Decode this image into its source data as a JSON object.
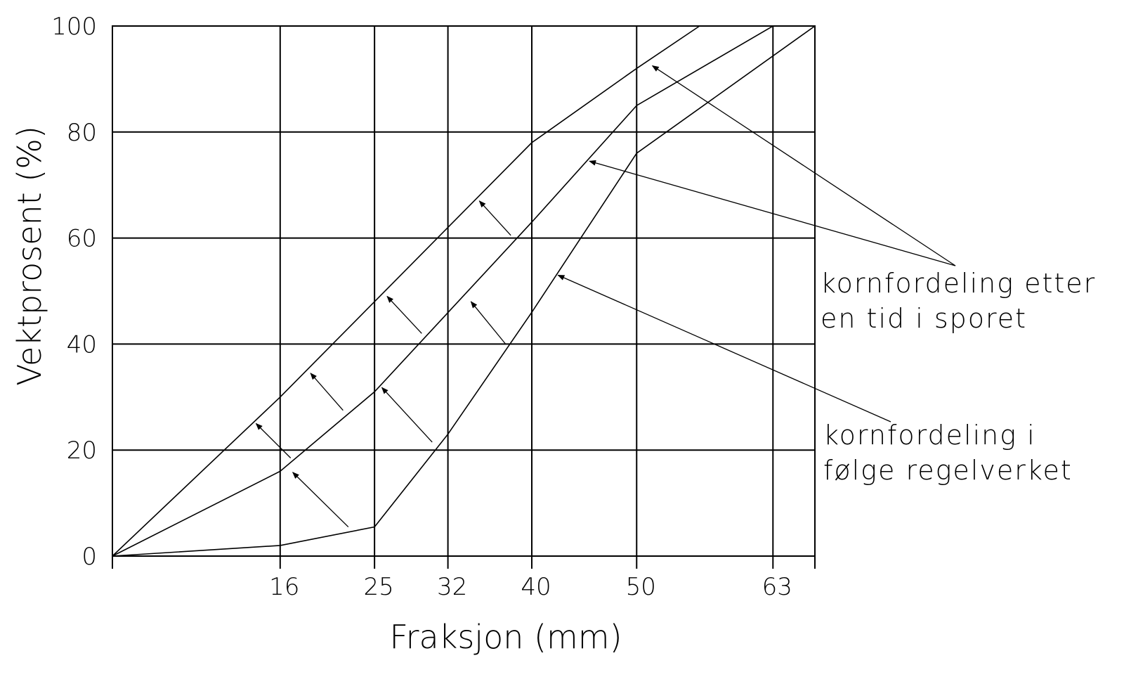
{
  "chart_data": {
    "type": "line",
    "xlabel": "Fraksjon (mm)",
    "ylabel": "Vektprosent (%)",
    "xticks": [
      16,
      25,
      32,
      40,
      50,
      63
    ],
    "yticks": [
      0,
      20,
      40,
      60,
      80,
      100
    ],
    "xlim": [
      0,
      67
    ],
    "ylim": [
      0,
      100
    ],
    "grid": true,
    "series": [
      {
        "role": "upper",
        "x": [
          0,
          16,
          25,
          40,
          50,
          56,
          67
        ],
        "y": [
          0,
          30,
          48,
          78,
          92,
          100,
          100
        ]
      },
      {
        "role": "middle",
        "x": [
          0,
          16,
          25,
          40,
          50,
          63,
          67
        ],
        "y": [
          0,
          16,
          31,
          63,
          85,
          100,
          100
        ]
      },
      {
        "role": "lower",
        "x": [
          0,
          16,
          25,
          32,
          40,
          50,
          67
        ],
        "y": [
          0,
          2,
          5.5,
          23,
          46,
          76,
          100
        ]
      }
    ],
    "shift_arrows": [
      {
        "from": [
          22.5,
          5.5
        ],
        "to": [
          17.2,
          15.8
        ]
      },
      {
        "from": [
          17.0,
          18.5
        ],
        "to": [
          13.7,
          25.0
        ]
      },
      {
        "from": [
          22.0,
          27.5
        ],
        "to": [
          18.9,
          34.5
        ]
      },
      {
        "from": [
          30.5,
          21.5
        ],
        "to": [
          25.7,
          31.8
        ]
      },
      {
        "from": [
          29.5,
          42.0
        ],
        "to": [
          26.2,
          49.0
        ]
      },
      {
        "from": [
          37.5,
          40.0
        ],
        "to": [
          34.2,
          48.0
        ]
      },
      {
        "from": [
          38.0,
          60.5
        ],
        "to": [
          35.0,
          67.0
        ]
      }
    ],
    "annotations": [
      {
        "lines": [
          "kornfordeling etter",
          "en tid i sporet"
        ],
        "targets": [
          [
            51.5,
            92.5
          ],
          [
            45.5,
            74.5
          ]
        ]
      },
      {
        "lines": [
          "kornfordeling i",
          "følge regelverket"
        ],
        "targets": [
          [
            42.5,
            53.0
          ]
        ]
      }
    ]
  }
}
